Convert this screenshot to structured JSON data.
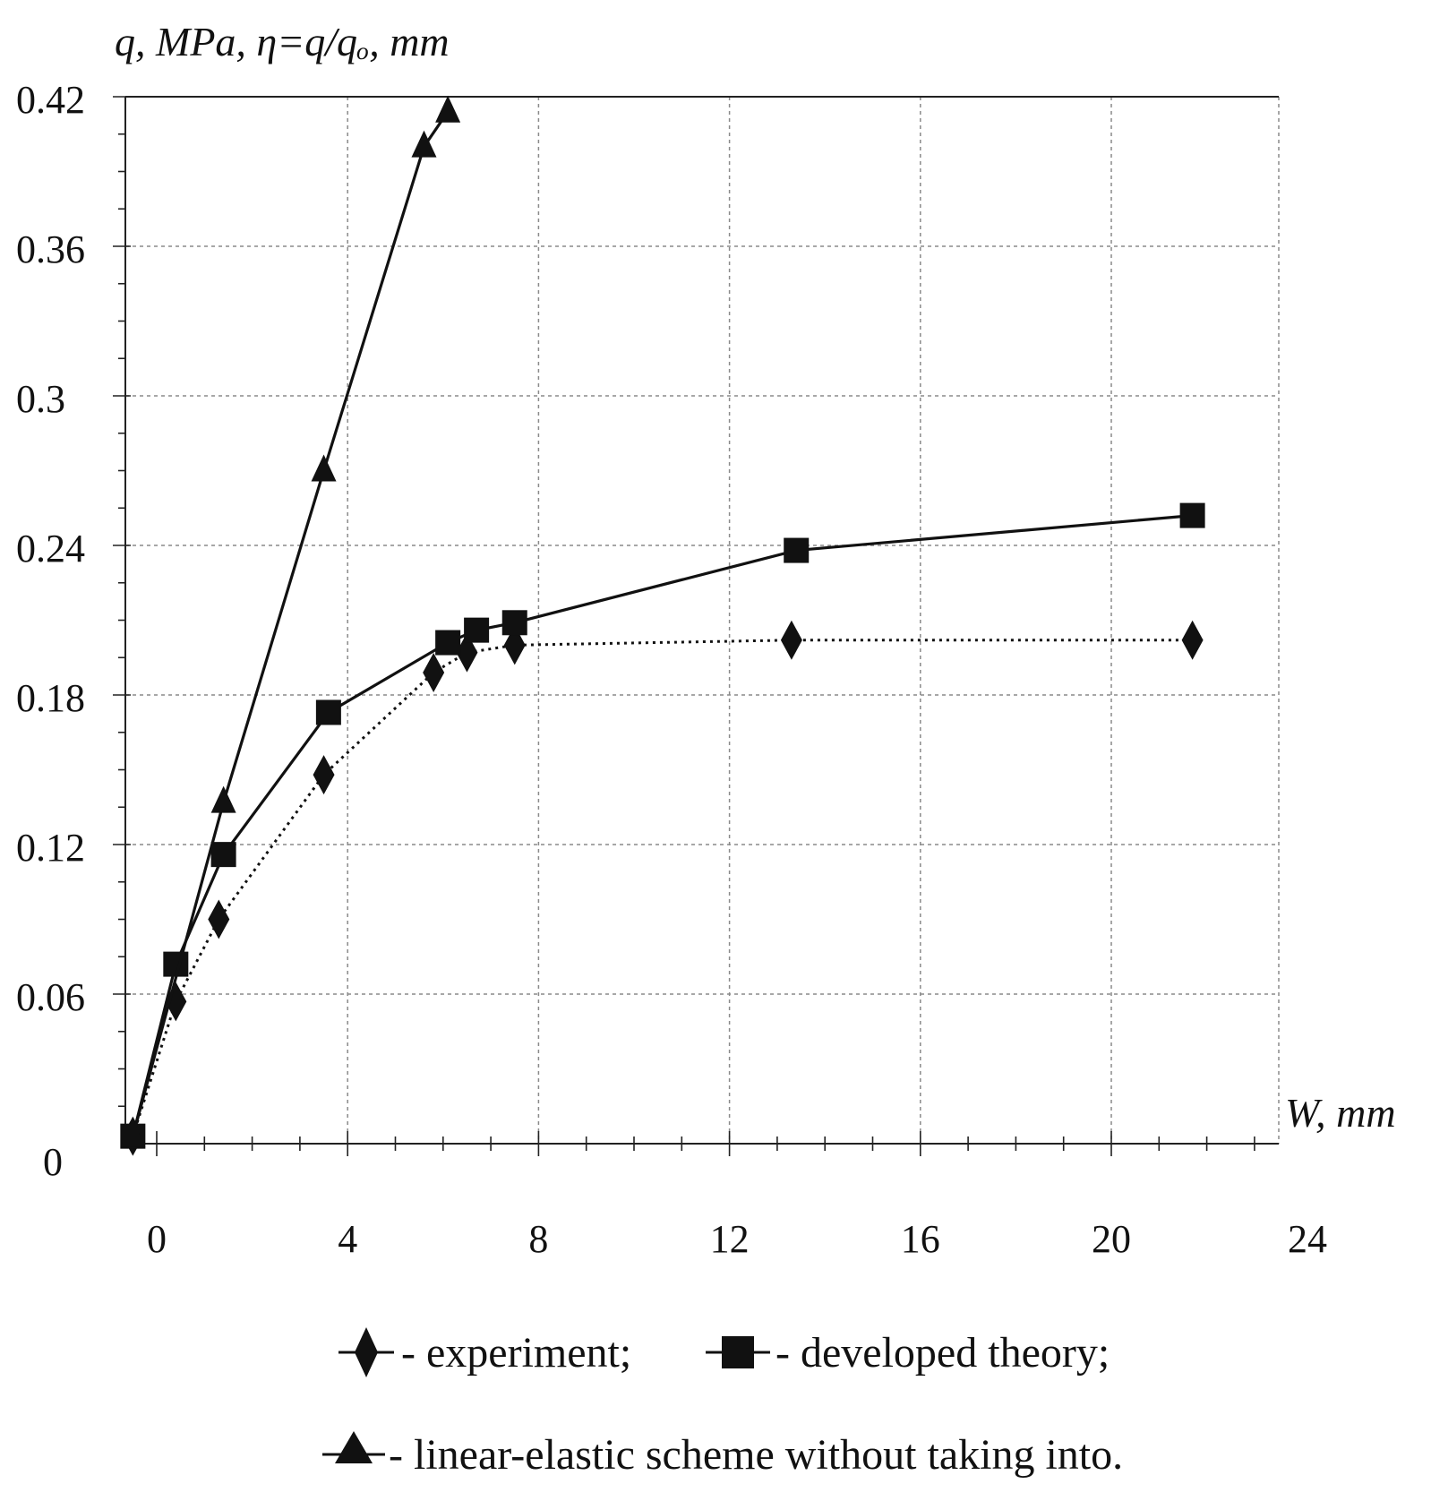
{
  "chart_data": {
    "type": "line",
    "title": "",
    "ylabel": "q, MPa, η=q/qₒ, mm",
    "xlabel": "W, mm",
    "ylim": [
      0,
      0.42
    ],
    "xlim": [
      -0.5,
      24
    ],
    "yticks": [
      {
        "value": 0,
        "label": "0"
      },
      {
        "value": 0.06,
        "label": "0.06"
      },
      {
        "value": 0.12,
        "label": "0.12"
      },
      {
        "value": 0.18,
        "label": "0.18"
      },
      {
        "value": 0.24,
        "label": "0.24"
      },
      {
        "value": 0.3,
        "label": "0.3"
      },
      {
        "value": 0.36,
        "label": "0.36"
      },
      {
        "value": 0.42,
        "label": "0.42"
      }
    ],
    "xticks": [
      {
        "value": 0,
        "label": "0"
      },
      {
        "value": 4,
        "label": "4"
      },
      {
        "value": 8,
        "label": "8"
      },
      {
        "value": 12,
        "label": "12"
      },
      {
        "value": 16,
        "label": "16"
      },
      {
        "value": 20,
        "label": "20"
      },
      {
        "value": 24,
        "label": "24"
      }
    ],
    "grid": true,
    "series": [
      {
        "name": "experiment",
        "legend_label": "- experiment;",
        "marker": "diamond",
        "line": "dotted",
        "x": [
          -0.5,
          0.4,
          1.3,
          3.5,
          5.8,
          6.5,
          7.5,
          13.3,
          21.7
        ],
        "y": [
          0.003,
          0.057,
          0.09,
          0.148,
          0.189,
          0.197,
          0.2,
          0.202,
          0.202
        ]
      },
      {
        "name": "developed theory",
        "legend_label": "- developed theory;",
        "marker": "square",
        "line": "solid",
        "x": [
          -0.5,
          0.4,
          1.4,
          3.6,
          6.1,
          6.7,
          7.5,
          13.4,
          21.7
        ],
        "y": [
          0.003,
          0.072,
          0.116,
          0.173,
          0.201,
          0.206,
          0.209,
          0.238,
          0.252
        ]
      },
      {
        "name": "linear-elastic scheme without taking into.",
        "legend_label": "- linear-elastic scheme without taking into.",
        "marker": "triangle",
        "line": "solid",
        "x": [
          -0.5,
          1.4,
          3.5,
          5.6,
          6.1
        ],
        "y": [
          0.003,
          0.137,
          0.27,
          0.4,
          0.414
        ]
      }
    ]
  }
}
